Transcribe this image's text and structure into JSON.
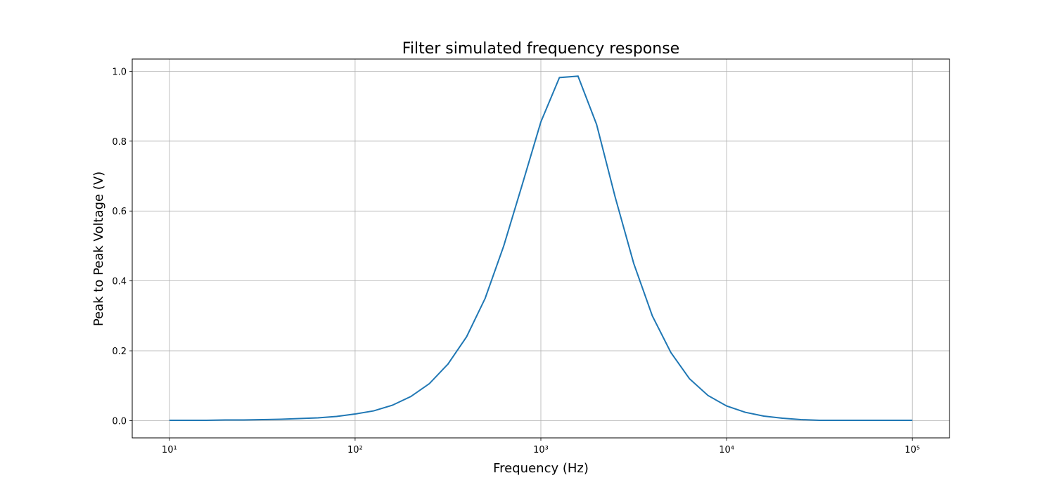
{
  "chart_data": {
    "type": "line",
    "title": "Filter simulated frequency response",
    "x_label": "Frequency (Hz)",
    "y_label": "Peak to Peak Voltage (V)",
    "x": [
      10,
      12.59,
      15.85,
      19.95,
      25.12,
      31.62,
      39.81,
      50.12,
      63.1,
      79.43,
      100,
      125.9,
      158.5,
      199.5,
      251.2,
      316.2,
      398.1,
      501.2,
      631,
      794.3,
      1000,
      1259,
      1585,
      1995,
      2512,
      3162,
      3981,
      5012,
      6310,
      7943,
      10000,
      12589,
      15849,
      19953,
      25119,
      31623,
      39811,
      50119,
      63096,
      79433,
      100000
    ],
    "values": [
      0.001,
      0.001,
      0.001,
      0.002,
      0.002,
      0.003,
      0.004,
      0.006,
      0.008,
      0.012,
      0.019,
      0.028,
      0.044,
      0.069,
      0.106,
      0.162,
      0.24,
      0.35,
      0.5,
      0.676,
      0.855,
      0.982,
      0.986,
      0.848,
      0.64,
      0.45,
      0.3,
      0.195,
      0.12,
      0.072,
      0.042,
      0.024,
      0.013,
      0.007,
      0.003,
      0.001,
      0.001,
      0.001,
      0.001,
      0.001,
      0.001
    ],
    "color": "#1f77b4",
    "xscale": "log",
    "xlim": [
      6.31,
      158489
    ],
    "xticks": [
      {
        "value": 10,
        "label": "10¹"
      },
      {
        "value": 100,
        "label": "10²"
      },
      {
        "value": 1000,
        "label": "10³"
      },
      {
        "value": 10000,
        "label": "10⁴"
      },
      {
        "value": 100000,
        "label": "10⁵"
      }
    ],
    "ylim": [
      -0.0493,
      1.035
    ],
    "yticks": [
      {
        "value": 0,
        "label": "0.0"
      },
      0.2,
      0.4,
      0.6,
      0.8,
      {
        "value": 1,
        "label": "1.0"
      }
    ],
    "grid": true
  }
}
